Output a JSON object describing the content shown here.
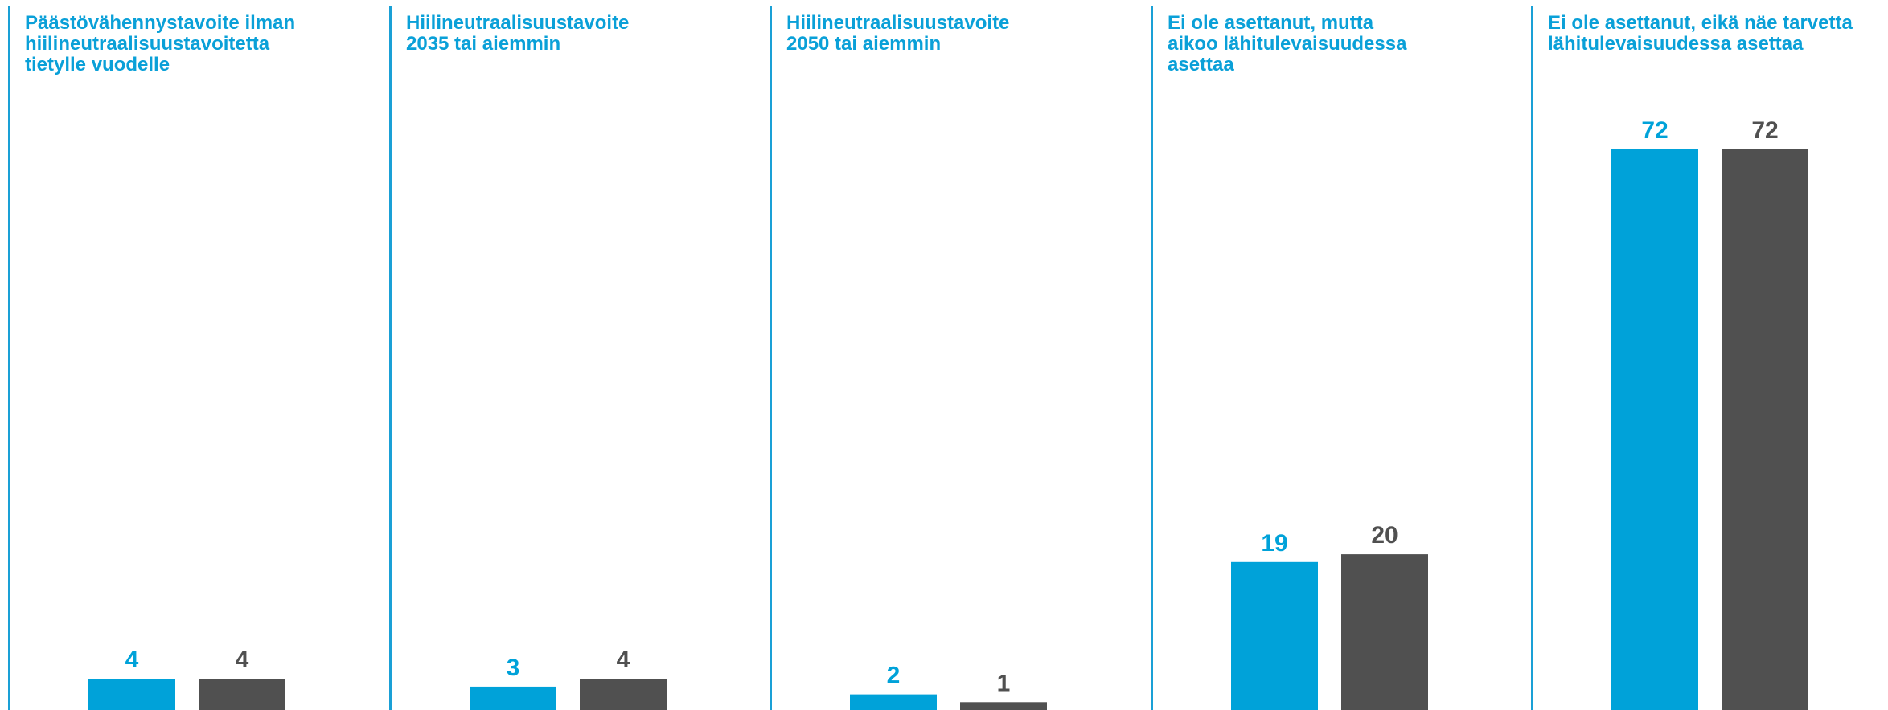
{
  "colors": {
    "accent": "#0aa0d8",
    "series1": "#00a2d9",
    "series2": "#505050"
  },
  "chart_data": {
    "type": "bar",
    "categories": [
      "Päästövähennystavoite ilman\nhiilineutraalisuustavoitetta\ntietylle vuodelle",
      "Hiilineutraalisuustavoite\n2035 tai aiemmin",
      "Hiilineutraalisuustavoite\n2050 tai aiemmin",
      "Ei ole asettanut, mutta\naikoo lähitulevaisuudessa\nasettaa",
      "Ei ole asettanut, eikä näe tarvetta\nlähitulevaisuudessa asettaa"
    ],
    "series": [
      {
        "values": [
          4,
          3,
          2,
          19,
          72
        ],
        "color": "#00a2d9"
      },
      {
        "values": [
          4,
          4,
          1,
          20,
          72
        ],
        "color": "#505050"
      }
    ],
    "ylim": [
      0,
      72
    ],
    "grid": false,
    "legend": "none"
  }
}
